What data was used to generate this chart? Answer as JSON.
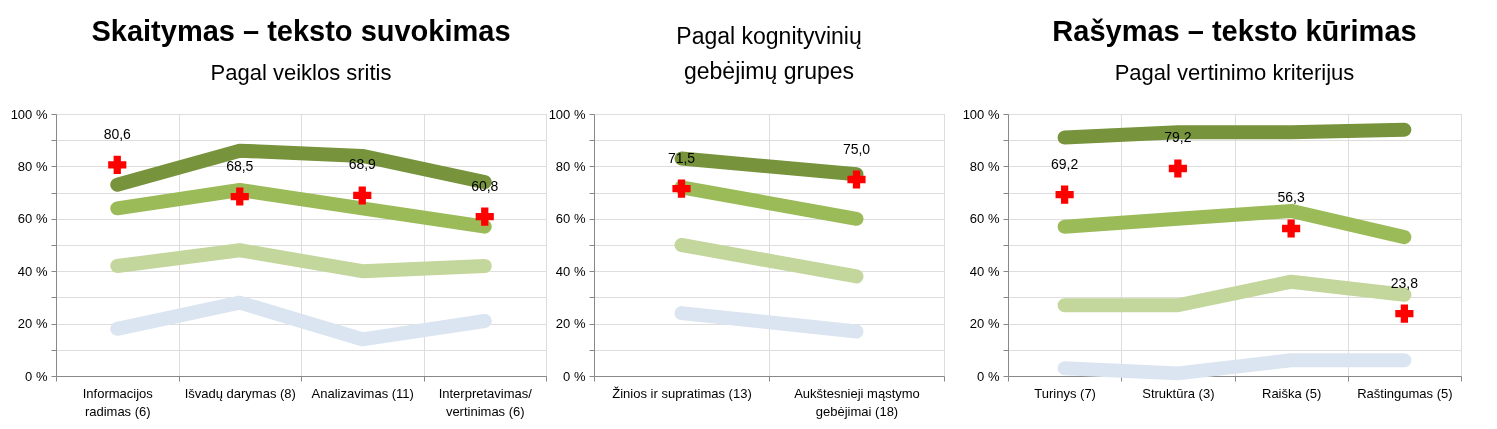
{
  "chart_data": [
    {
      "type": "line",
      "title": "Skaitymas – teksto suvokimas",
      "subtitle": "Pagal veiklos sritis",
      "categories": [
        "Informacijos\nradimas (6)",
        "Išvadų darymas (8)",
        "Analizavimas (11)",
        "Interpretavimas/\nvertinimas (6)"
      ],
      "series": [
        {
          "color": "#77933c",
          "values": [
            73,
            86,
            84,
            74
          ]
        },
        {
          "color": "#9bbb59",
          "values": [
            64,
            71,
            64,
            57
          ]
        },
        {
          "color": "#c3d69b",
          "values": [
            42,
            48,
            40,
            42
          ]
        },
        {
          "color": "#dbe5f1",
          "values": [
            18,
            28,
            14,
            21
          ]
        },
        {
          "type": "scatter",
          "marker": "cross",
          "color": "#ff0000",
          "values": [
            80.6,
            68.5,
            68.9,
            60.8
          ],
          "value_labels": [
            "80,6",
            "68,5",
            "68,9",
            "60,8"
          ]
        }
      ],
      "ylim": [
        0,
        100
      ],
      "yticks": [
        {
          "value": 0,
          "label": "0 %"
        },
        {
          "value": 10,
          "label": null
        },
        {
          "value": 20,
          "label": "20 %"
        },
        {
          "value": 30,
          "label": null
        },
        {
          "value": 40,
          "label": "40 %"
        },
        {
          "value": 50,
          "label": null
        },
        {
          "value": 60,
          "label": "60 %"
        },
        {
          "value": 70,
          "label": null
        },
        {
          "value": 80,
          "label": "80 %"
        },
        {
          "value": 90,
          "label": null
        },
        {
          "value": 100,
          "label": "100 %"
        }
      ],
      "grid": true
    },
    {
      "type": "line",
      "subtitle": "Pagal kognityvinių\ngebėjimų grupes",
      "categories": [
        "Žinios ir supratimas (13)",
        "Aukštesnieji mąstymo\ngebėjimai (18)"
      ],
      "series": [
        {
          "color": "#77933c",
          "values": [
            83,
            77
          ]
        },
        {
          "color": "#9bbb59",
          "values": [
            72,
            60
          ]
        },
        {
          "color": "#c3d69b",
          "values": [
            50,
            38
          ]
        },
        {
          "color": "#dbe5f1",
          "values": [
            24,
            17
          ]
        },
        {
          "type": "scatter",
          "marker": "cross",
          "color": "#ff0000",
          "values": [
            71.5,
            75.0
          ],
          "value_labels": [
            "71,5",
            "75,0"
          ]
        }
      ],
      "ylim": [
        0,
        100
      ],
      "yticks": [
        {
          "value": 0,
          "label": "0 %"
        },
        {
          "value": 10,
          "label": null
        },
        {
          "value": 20,
          "label": "20 %"
        },
        {
          "value": 30,
          "label": null
        },
        {
          "value": 40,
          "label": "40 %"
        },
        {
          "value": 50,
          "label": null
        },
        {
          "value": 60,
          "label": "60 %"
        },
        {
          "value": 70,
          "label": null
        },
        {
          "value": 80,
          "label": "80 %"
        },
        {
          "value": 90,
          "label": null
        },
        {
          "value": 100,
          "label": "100 %"
        }
      ],
      "grid": true
    },
    {
      "type": "line",
      "title": "Rašymas – teksto kūrimas",
      "subtitle": "Pagal vertinimo kriterijus",
      "categories": [
        "Turinys (7)",
        "Struktūra (3)",
        "Raiška (5)",
        "Raštingumas (5)"
      ],
      "series": [
        {
          "color": "#77933c",
          "values": [
            91,
            93,
            93,
            94
          ]
        },
        {
          "color": "#9bbb59",
          "values": [
            57,
            60,
            63,
            53
          ]
        },
        {
          "color": "#c3d69b",
          "values": [
            27,
            27,
            36,
            31
          ]
        },
        {
          "color": "#dbe5f1",
          "values": [
            3,
            1,
            6,
            6
          ]
        },
        {
          "type": "scatter",
          "marker": "cross",
          "color": "#ff0000",
          "values": [
            69.2,
            79.2,
            56.3,
            23.8
          ],
          "value_labels": [
            "69,2",
            "79,2",
            "56,3",
            "23,8"
          ]
        }
      ],
      "ylim": [
        0,
        100
      ],
      "yticks": [
        {
          "value": 0,
          "label": "0 %"
        },
        {
          "value": 10,
          "label": null
        },
        {
          "value": 20,
          "label": "20 %"
        },
        {
          "value": 30,
          "label": null
        },
        {
          "value": 40,
          "label": "40 %"
        },
        {
          "value": 50,
          "label": null
        },
        {
          "value": 60,
          "label": "60 %"
        },
        {
          "value": 70,
          "label": null
        },
        {
          "value": 80,
          "label": "80 %"
        },
        {
          "value": 90,
          "label": null
        },
        {
          "value": 100,
          "label": "100 %"
        }
      ],
      "grid": true
    }
  ]
}
